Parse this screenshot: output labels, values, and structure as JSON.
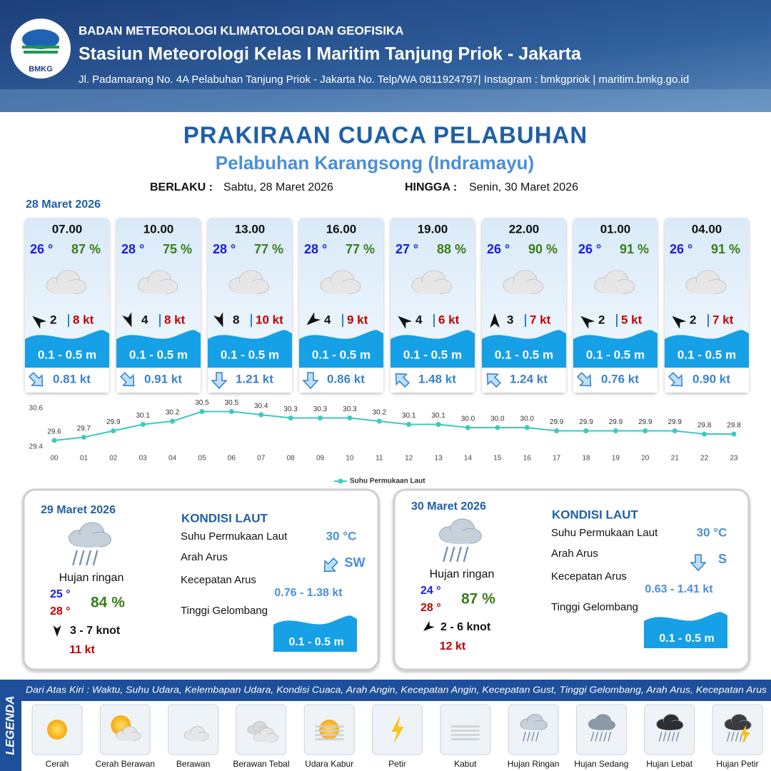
{
  "header": {
    "logo_text": "BMKG",
    "org": "BADAN METEOROLOGI KLIMATOLOGI DAN GEOFISIKA",
    "station": "Stasiun Meteorologi Kelas I Maritim Tanjung Priok - Jakarta",
    "address": "Jl. Padamarang No. 4A Pelabuhan Tanjung Priok - Jakarta No. Telp/WA 0811924797| Instagram : bmkgpriok | maritim.bmkg.go.id"
  },
  "title": "PRAKIRAAN CUACA PELABUHAN",
  "subtitle": "Pelabuhan Karangsong (Indramayu)",
  "validity": {
    "from_label": "BERLAKU :",
    "from": "Sabtu, 28 Maret 2026",
    "to_label": "HINGGA :",
    "to": "Senin, 30 Maret 2026"
  },
  "day1_date": "28 Maret 2026",
  "forecasts": [
    {
      "time": "07.00",
      "temp": "26 °",
      "humidity": "87 %",
      "wind": "2",
      "gust": "8 kt",
      "wave": "0.1 - 0.5 m",
      "current": "0.81 kt"
    },
    {
      "time": "10.00",
      "temp": "28 °",
      "humidity": "75 %",
      "wind": "4",
      "gust": "8 kt",
      "wave": "0.1 - 0.5 m",
      "current": "0.91 kt"
    },
    {
      "time": "13.00",
      "temp": "28 °",
      "humidity": "77 %",
      "wind": "8",
      "gust": "10 kt",
      "wave": "0.1 - 0.5 m",
      "current": "1.21 kt"
    },
    {
      "time": "16.00",
      "temp": "28 °",
      "humidity": "77 %",
      "wind": "4",
      "gust": "9 kt",
      "wave": "0.1 - 0.5 m",
      "current": "0.86 kt"
    },
    {
      "time": "19.00",
      "temp": "27 °",
      "humidity": "88 %",
      "wind": "4",
      "gust": "6 kt",
      "wave": "0.1 - 0.5 m",
      "current": "1.48 kt"
    },
    {
      "time": "22.00",
      "temp": "26 °",
      "humidity": "90 %",
      "wind": "3",
      "gust": "7 kt",
      "wave": "0.1 - 0.5 m",
      "current": "1.24 kt"
    },
    {
      "time": "01.00",
      "temp": "26 °",
      "humidity": "91 %",
      "wind": "2",
      "gust": "5 kt",
      "wave": "0.1 - 0.5 m",
      "current": "0.76 kt"
    },
    {
      "time": "04.00",
      "temp": "26 °",
      "humidity": "91 %",
      "wind": "2",
      "gust": "7 kt",
      "wave": "0.1 - 0.5 m",
      "current": "0.90 kt"
    }
  ],
  "chart_data": {
    "type": "line",
    "categories": [
      "00",
      "01",
      "02",
      "03",
      "04",
      "05",
      "06",
      "07",
      "08",
      "09",
      "10",
      "11",
      "12",
      "13",
      "14",
      "15",
      "16",
      "17",
      "18",
      "19",
      "20",
      "21",
      "22",
      "23"
    ],
    "series": [
      {
        "name": "Suhu Permukaan Laut",
        "color": "#3cc9c0",
        "values": [
          29.6,
          29.7,
          29.9,
          30.1,
          30.2,
          30.5,
          30.5,
          30.4,
          30.3,
          30.3,
          30.3,
          30.2,
          30.1,
          30.1,
          30.0,
          30.0,
          30.0,
          29.9,
          29.9,
          29.9,
          29.9,
          29.9,
          29.8,
          29.8
        ],
        "value_labels": [
          "29.6",
          "29.7",
          "29.9",
          "30.1",
          "30.2",
          "30.5",
          "30.5",
          "30.4",
          "30.3",
          "30.3",
          "30.3",
          "30.2",
          "30.1",
          "30.1",
          "30.0",
          "30.0",
          "30.0",
          "29.9",
          "29.9",
          "29.9",
          "29.9",
          "29.9",
          "29.8",
          "29.8"
        ]
      }
    ],
    "ylim": [
      29.4,
      30.6
    ],
    "yticks": [
      29.4,
      30.6
    ]
  },
  "days": [
    {
      "date": "29 Maret 2026",
      "condition": "Hujan ringan",
      "temp_min": "25 °",
      "temp_max": "28 °",
      "humidity": "84 %",
      "wind": "3 - 7 knot",
      "gust": "11 kt",
      "sea_title": "KONDISI LAUT",
      "sea_temp_label": "Suhu Permukaan Laut",
      "sea_temp": "30 °C",
      "current_dir_label": "Arah Arus",
      "current_dir": "SW",
      "current_speed_label": "Kecepatan Arus",
      "current_speed": "0.76 - 1.38 kt",
      "wave_label": "Tinggi Gelombang",
      "wave": "0.1 - 0.5 m"
    },
    {
      "date": "30 Maret 2026",
      "condition": "Hujan ringan",
      "temp_min": "24 °",
      "temp_max": "28 °",
      "humidity": "87 %",
      "wind": "2 - 6 knot",
      "gust": "12 kt",
      "sea_title": "KONDISI LAUT",
      "sea_temp_label": "Suhu Permukaan Laut",
      "sea_temp": "30 °C",
      "current_dir_label": "Arah Arus",
      "current_dir": "S",
      "current_speed_label": "Kecepatan Arus",
      "current_speed": "0.63 - 1.41 kt",
      "wave_label": "Tinggi Gelombang",
      "wave": "0.1 - 0.5 m"
    }
  ],
  "legend": {
    "title": "LEGENDA",
    "description": "Dari Atas Kiri : Waktu, Suhu Udara, Kelembapan Udara, Kondisi Cuaca, Arah Angin, Kecepatan Angin, Kecepatan Gust, Tinggi Gelombang, Arah Arus, Kecepatan Arus",
    "items": [
      "Cerah",
      "Cerah Berawan",
      "Berawan",
      "Berawan Tebal",
      "Udara Kabur",
      "Petir",
      "Kabut",
      "Hujan Ringan",
      "Hujan Sedang",
      "Hujan Lebat",
      "Hujan Petir"
    ]
  }
}
